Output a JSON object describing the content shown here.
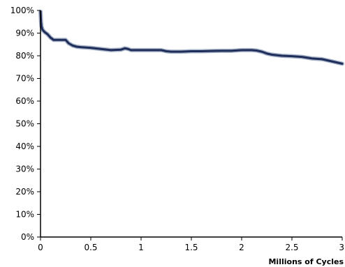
{
  "chart_data": {
    "type": "line",
    "title": "",
    "xlabel": "Millions of Cycles",
    "ylabel": "",
    "xlim": [
      0,
      3
    ],
    "ylim": [
      0,
      100
    ],
    "grid": false,
    "x_ticks": [
      0,
      0.5,
      1,
      1.5,
      2,
      2.5,
      3
    ],
    "x_tick_labels": [
      "0",
      "0.5",
      "1",
      "1.5",
      "2",
      "2.5",
      "3"
    ],
    "y_ticks": [
      0,
      10,
      20,
      30,
      40,
      50,
      60,
      70,
      80,
      90,
      100
    ],
    "y_tick_labels": [
      "0%",
      "10%",
      "20%",
      "30%",
      "40%",
      "50%",
      "60%",
      "70%",
      "80%",
      "90%",
      "100%"
    ],
    "colors": {
      "line": "#1f2d5a",
      "line_halo": "#a8b4c8",
      "axis": "#000000"
    },
    "series": [
      {
        "x": [
          0,
          0.005,
          0.01,
          0.02,
          0.04,
          0.07,
          0.1,
          0.13,
          0.16,
          0.2,
          0.25,
          0.28,
          0.32,
          0.36,
          0.4,
          0.5,
          0.6,
          0.7,
          0.8,
          0.84,
          0.87,
          0.9,
          1.0,
          1.1,
          1.2,
          1.25,
          1.3,
          1.4,
          1.5,
          1.6,
          1.7,
          1.8,
          1.9,
          2.0,
          2.1,
          2.15,
          2.2,
          2.25,
          2.3,
          2.4,
          2.5,
          2.6,
          2.7,
          2.8,
          2.9,
          3.0
        ],
        "y": [
          99.5,
          95,
          93,
          91.5,
          90.5,
          89.5,
          88,
          87,
          87,
          87,
          87,
          85.5,
          84.5,
          84,
          83.8,
          83.5,
          83,
          82.5,
          82.7,
          83.3,
          83,
          82.5,
          82.5,
          82.5,
          82.5,
          82,
          81.8,
          81.8,
          82,
          82,
          82.1,
          82.2,
          82.2,
          82.5,
          82.5,
          82.3,
          81.8,
          81,
          80.5,
          80,
          79.8,
          79.5,
          78.8,
          78.5,
          77.5,
          76.5
        ]
      }
    ]
  }
}
